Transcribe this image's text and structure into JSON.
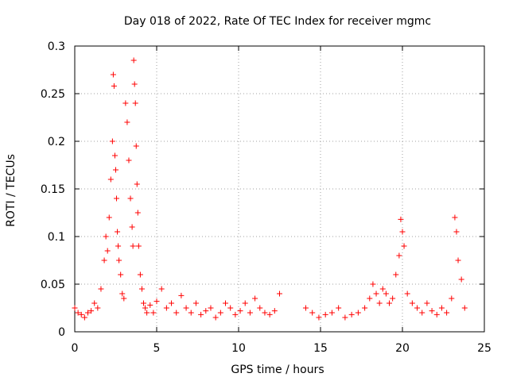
{
  "chart_data": {
    "type": "scatter",
    "title": "Day 018 of 2022, Rate Of TEC Index for receiver mgmc",
    "xlabel": "GPS time / hours",
    "ylabel": "ROTI / TECUs",
    "xlim": [
      0,
      25
    ],
    "ylim": [
      0,
      0.3
    ],
    "xticks": [
      0,
      5,
      10,
      15,
      20,
      25
    ],
    "xtick_labels": [
      "0",
      "5",
      "10",
      "15",
      "20",
      "25"
    ],
    "yticks": [
      0,
      0.05,
      0.1,
      0.15,
      0.2,
      0.25,
      0.3
    ],
    "ytick_labels": [
      "0",
      "0.05",
      "0.1",
      "0.15",
      "0.2",
      "0.25",
      "0.3"
    ],
    "grid": true,
    "marker": "+",
    "color": "#ff0000",
    "series": [
      {
        "name": "ROTI",
        "x": [
          0.0,
          0.2,
          0.4,
          0.6,
          0.8,
          1.0,
          1.2,
          1.4,
          1.6,
          1.8,
          1.9,
          2.0,
          2.1,
          2.2,
          2.3,
          2.35,
          2.4,
          2.45,
          2.5,
          2.55,
          2.6,
          2.65,
          2.7,
          2.8,
          2.9,
          3.0,
          3.1,
          3.2,
          3.3,
          3.4,
          3.5,
          3.55,
          3.6,
          3.65,
          3.7,
          3.75,
          3.8,
          3.85,
          3.9,
          4.0,
          4.1,
          4.2,
          4.3,
          4.4,
          4.6,
          4.8,
          5.0,
          5.3,
          5.6,
          5.9,
          6.2,
          6.5,
          6.8,
          7.1,
          7.4,
          7.7,
          8.0,
          8.3,
          8.6,
          8.9,
          9.2,
          9.5,
          9.8,
          10.1,
          10.4,
          10.7,
          11.0,
          11.3,
          11.6,
          11.9,
          12.2,
          12.5,
          14.1,
          14.5,
          14.9,
          15.3,
          15.7,
          16.1,
          16.5,
          16.9,
          17.3,
          17.7,
          18.0,
          18.2,
          18.4,
          18.6,
          18.8,
          19.0,
          19.2,
          19.4,
          19.6,
          19.8,
          19.9,
          20.0,
          20.1,
          20.3,
          20.6,
          20.9,
          21.2,
          21.5,
          21.8,
          22.1,
          22.4,
          22.7,
          23.0,
          23.2,
          23.3,
          23.4,
          23.6,
          23.8
        ],
        "y": [
          0.025,
          0.02,
          0.018,
          0.015,
          0.02,
          0.022,
          0.03,
          0.025,
          0.045,
          0.075,
          0.1,
          0.085,
          0.12,
          0.16,
          0.2,
          0.27,
          0.258,
          0.185,
          0.17,
          0.14,
          0.105,
          0.09,
          0.075,
          0.06,
          0.04,
          0.035,
          0.24,
          0.22,
          0.18,
          0.14,
          0.11,
          0.09,
          0.285,
          0.26,
          0.24,
          0.195,
          0.155,
          0.125,
          0.09,
          0.06,
          0.045,
          0.03,
          0.025,
          0.02,
          0.028,
          0.02,
          0.032,
          0.045,
          0.025,
          0.03,
          0.02,
          0.038,
          0.025,
          0.02,
          0.03,
          0.018,
          0.022,
          0.025,
          0.015,
          0.02,
          0.03,
          0.025,
          0.018,
          0.022,
          0.03,
          0.02,
          0.035,
          0.025,
          0.02,
          0.018,
          0.022,
          0.04,
          0.025,
          0.02,
          0.015,
          0.018,
          0.02,
          0.025,
          0.015,
          0.018,
          0.02,
          0.025,
          0.035,
          0.05,
          0.04,
          0.03,
          0.045,
          0.04,
          0.03,
          0.035,
          0.06,
          0.08,
          0.118,
          0.105,
          0.09,
          0.04,
          0.03,
          0.025,
          0.02,
          0.03,
          0.022,
          0.018,
          0.025,
          0.02,
          0.035,
          0.12,
          0.105,
          0.075,
          0.055,
          0.025
        ]
      }
    ]
  }
}
